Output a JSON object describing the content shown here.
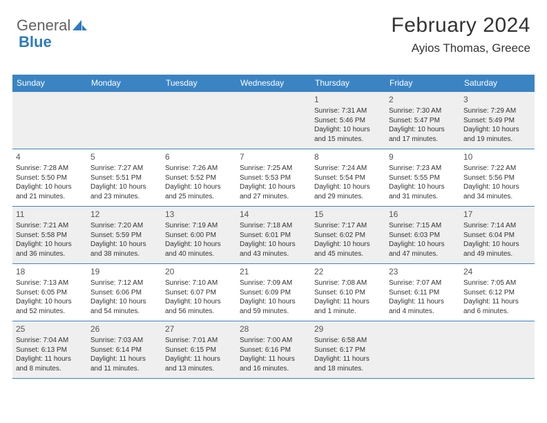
{
  "logo": {
    "part1": "General",
    "part2": "Blue"
  },
  "header": {
    "month": "February 2024",
    "location": "Ayios Thomas, Greece"
  },
  "colors": {
    "header_bg": "#3b84c4",
    "header_fg": "#ffffff",
    "alt_row_bg": "#efefef",
    "border": "#3b84c4",
    "logo_gray": "#616161",
    "logo_blue": "#2b7bbf"
  },
  "weekdays": [
    "Sunday",
    "Monday",
    "Tuesday",
    "Wednesday",
    "Thursday",
    "Friday",
    "Saturday"
  ],
  "weeks": [
    [
      {
        "empty": true
      },
      {
        "empty": true
      },
      {
        "empty": true
      },
      {
        "empty": true
      },
      {
        "num": "1",
        "sunrise": "Sunrise: 7:31 AM",
        "sunset": "Sunset: 5:46 PM",
        "daylight": "Daylight: 10 hours and 15 minutes."
      },
      {
        "num": "2",
        "sunrise": "Sunrise: 7:30 AM",
        "sunset": "Sunset: 5:47 PM",
        "daylight": "Daylight: 10 hours and 17 minutes."
      },
      {
        "num": "3",
        "sunrise": "Sunrise: 7:29 AM",
        "sunset": "Sunset: 5:49 PM",
        "daylight": "Daylight: 10 hours and 19 minutes."
      }
    ],
    [
      {
        "num": "4",
        "sunrise": "Sunrise: 7:28 AM",
        "sunset": "Sunset: 5:50 PM",
        "daylight": "Daylight: 10 hours and 21 minutes."
      },
      {
        "num": "5",
        "sunrise": "Sunrise: 7:27 AM",
        "sunset": "Sunset: 5:51 PM",
        "daylight": "Daylight: 10 hours and 23 minutes."
      },
      {
        "num": "6",
        "sunrise": "Sunrise: 7:26 AM",
        "sunset": "Sunset: 5:52 PM",
        "daylight": "Daylight: 10 hours and 25 minutes."
      },
      {
        "num": "7",
        "sunrise": "Sunrise: 7:25 AM",
        "sunset": "Sunset: 5:53 PM",
        "daylight": "Daylight: 10 hours and 27 minutes."
      },
      {
        "num": "8",
        "sunrise": "Sunrise: 7:24 AM",
        "sunset": "Sunset: 5:54 PM",
        "daylight": "Daylight: 10 hours and 29 minutes."
      },
      {
        "num": "9",
        "sunrise": "Sunrise: 7:23 AM",
        "sunset": "Sunset: 5:55 PM",
        "daylight": "Daylight: 10 hours and 31 minutes."
      },
      {
        "num": "10",
        "sunrise": "Sunrise: 7:22 AM",
        "sunset": "Sunset: 5:56 PM",
        "daylight": "Daylight: 10 hours and 34 minutes."
      }
    ],
    [
      {
        "num": "11",
        "sunrise": "Sunrise: 7:21 AM",
        "sunset": "Sunset: 5:58 PM",
        "daylight": "Daylight: 10 hours and 36 minutes."
      },
      {
        "num": "12",
        "sunrise": "Sunrise: 7:20 AM",
        "sunset": "Sunset: 5:59 PM",
        "daylight": "Daylight: 10 hours and 38 minutes."
      },
      {
        "num": "13",
        "sunrise": "Sunrise: 7:19 AM",
        "sunset": "Sunset: 6:00 PM",
        "daylight": "Daylight: 10 hours and 40 minutes."
      },
      {
        "num": "14",
        "sunrise": "Sunrise: 7:18 AM",
        "sunset": "Sunset: 6:01 PM",
        "daylight": "Daylight: 10 hours and 43 minutes."
      },
      {
        "num": "15",
        "sunrise": "Sunrise: 7:17 AM",
        "sunset": "Sunset: 6:02 PM",
        "daylight": "Daylight: 10 hours and 45 minutes."
      },
      {
        "num": "16",
        "sunrise": "Sunrise: 7:15 AM",
        "sunset": "Sunset: 6:03 PM",
        "daylight": "Daylight: 10 hours and 47 minutes."
      },
      {
        "num": "17",
        "sunrise": "Sunrise: 7:14 AM",
        "sunset": "Sunset: 6:04 PM",
        "daylight": "Daylight: 10 hours and 49 minutes."
      }
    ],
    [
      {
        "num": "18",
        "sunrise": "Sunrise: 7:13 AM",
        "sunset": "Sunset: 6:05 PM",
        "daylight": "Daylight: 10 hours and 52 minutes."
      },
      {
        "num": "19",
        "sunrise": "Sunrise: 7:12 AM",
        "sunset": "Sunset: 6:06 PM",
        "daylight": "Daylight: 10 hours and 54 minutes."
      },
      {
        "num": "20",
        "sunrise": "Sunrise: 7:10 AM",
        "sunset": "Sunset: 6:07 PM",
        "daylight": "Daylight: 10 hours and 56 minutes."
      },
      {
        "num": "21",
        "sunrise": "Sunrise: 7:09 AM",
        "sunset": "Sunset: 6:09 PM",
        "daylight": "Daylight: 10 hours and 59 minutes."
      },
      {
        "num": "22",
        "sunrise": "Sunrise: 7:08 AM",
        "sunset": "Sunset: 6:10 PM",
        "daylight": "Daylight: 11 hours and 1 minute."
      },
      {
        "num": "23",
        "sunrise": "Sunrise: 7:07 AM",
        "sunset": "Sunset: 6:11 PM",
        "daylight": "Daylight: 11 hours and 4 minutes."
      },
      {
        "num": "24",
        "sunrise": "Sunrise: 7:05 AM",
        "sunset": "Sunset: 6:12 PM",
        "daylight": "Daylight: 11 hours and 6 minutes."
      }
    ],
    [
      {
        "num": "25",
        "sunrise": "Sunrise: 7:04 AM",
        "sunset": "Sunset: 6:13 PM",
        "daylight": "Daylight: 11 hours and 8 minutes."
      },
      {
        "num": "26",
        "sunrise": "Sunrise: 7:03 AM",
        "sunset": "Sunset: 6:14 PM",
        "daylight": "Daylight: 11 hours and 11 minutes."
      },
      {
        "num": "27",
        "sunrise": "Sunrise: 7:01 AM",
        "sunset": "Sunset: 6:15 PM",
        "daylight": "Daylight: 11 hours and 13 minutes."
      },
      {
        "num": "28",
        "sunrise": "Sunrise: 7:00 AM",
        "sunset": "Sunset: 6:16 PM",
        "daylight": "Daylight: 11 hours and 16 minutes."
      },
      {
        "num": "29",
        "sunrise": "Sunrise: 6:58 AM",
        "sunset": "Sunset: 6:17 PM",
        "daylight": "Daylight: 11 hours and 18 minutes."
      },
      {
        "empty": true
      },
      {
        "empty": true
      }
    ]
  ]
}
